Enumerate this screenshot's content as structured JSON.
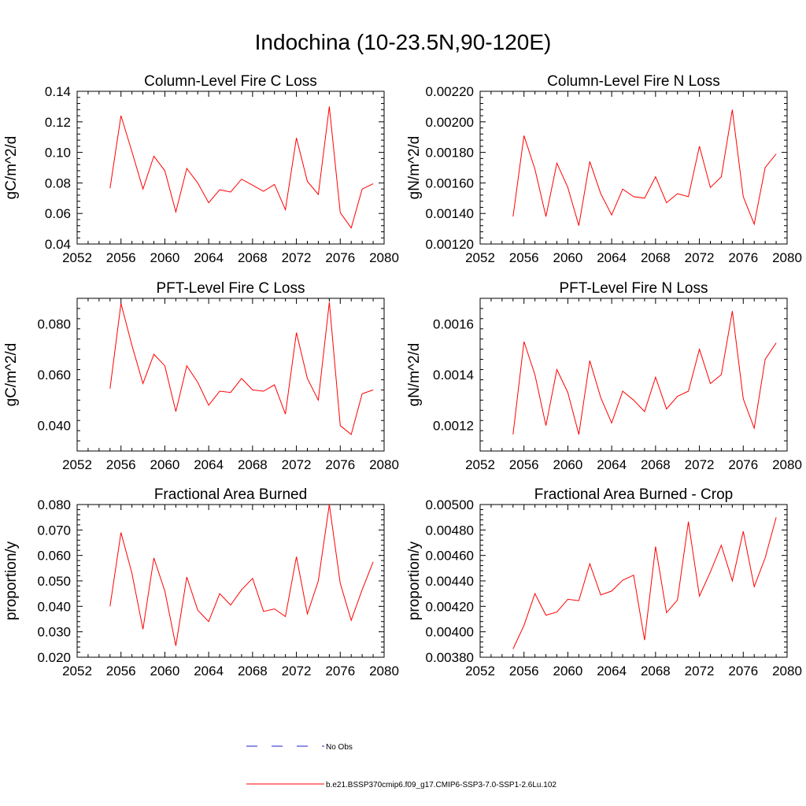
{
  "title": "Indochina (10-23.5N,90-120E)",
  "legend": {
    "obs_label": "No Obs",
    "model_label": "b.e21.BSSP370cmip6.f09_g17.CMIP6-SSP3-7.0-SSP1-2.6Lu.102",
    "obs_color": "#1f1fd0",
    "model_color": "#ff0000"
  },
  "chart_data": [
    {
      "type": "line",
      "title": "Column-Level Fire C Loss",
      "ylabel": "gC/m^2/d",
      "xlim": [
        2052,
        2080
      ],
      "ylim": [
        0.04,
        0.14
      ],
      "xticks": [
        "2052",
        "2056",
        "2060",
        "2064",
        "2068",
        "2072",
        "2076",
        "2080"
      ],
      "yticks": [
        "0.04",
        "0.06",
        "0.08",
        "0.10",
        "0.12",
        "0.14"
      ],
      "x": [
        2055,
        2056,
        2057,
        2058,
        2059,
        2060,
        2061,
        2062,
        2063,
        2064,
        2065,
        2066,
        2067,
        2068,
        2069,
        2070,
        2071,
        2072,
        2073,
        2074,
        2075,
        2076,
        2077,
        2078,
        2079
      ],
      "series": [
        {
          "values": [
            0.0765,
            0.124,
            0.1005,
            0.076,
            0.0975,
            0.088,
            0.061,
            0.0895,
            0.08,
            0.067,
            0.0755,
            0.074,
            0.0825,
            0.0785,
            0.0745,
            0.079,
            0.0625,
            0.1095,
            0.081,
            0.0725,
            0.13,
            0.0605,
            0.0505,
            0.076,
            0.0795
          ]
        }
      ]
    },
    {
      "type": "line",
      "title": "Column-Level Fire N Loss",
      "ylabel": "gN/m^2/d",
      "xlim": [
        2052,
        2080
      ],
      "ylim": [
        0.0012,
        0.0022
      ],
      "xticks": [
        "2052",
        "2056",
        "2060",
        "2064",
        "2068",
        "2072",
        "2076",
        "2080"
      ],
      "yticks": [
        "0.00120",
        "0.00140",
        "0.00160",
        "0.00180",
        "0.00200",
        "0.00220"
      ],
      "x": [
        2055,
        2056,
        2057,
        2058,
        2059,
        2060,
        2061,
        2062,
        2063,
        2064,
        2065,
        2066,
        2067,
        2068,
        2069,
        2070,
        2071,
        2072,
        2073,
        2074,
        2075,
        2076,
        2077,
        2078,
        2079
      ],
      "series": [
        {
          "values": [
            0.00138,
            0.00191,
            0.00169,
            0.00138,
            0.00173,
            0.00157,
            0.00132,
            0.00174,
            0.00153,
            0.00139,
            0.00156,
            0.00151,
            0.0015,
            0.00164,
            0.00147,
            0.00153,
            0.00151,
            0.00184,
            0.00157,
            0.00164,
            0.00208,
            0.00151,
            0.00133,
            0.0017,
            0.00179
          ]
        }
      ]
    },
    {
      "type": "line",
      "title": "PFT-Level Fire C Loss",
      "ylabel": "gC/m^2/d",
      "xlim": [
        2052,
        2080
      ],
      "ylim": [
        0.03,
        0.09
      ],
      "xticks": [
        "2052",
        "2056",
        "2060",
        "2064",
        "2068",
        "2072",
        "2076",
        "2080"
      ],
      "yticks": [
        "0.040",
        "0.060",
        "0.080"
      ],
      "x": [
        2055,
        2056,
        2057,
        2058,
        2059,
        2060,
        2061,
        2062,
        2063,
        2064,
        2065,
        2066,
        2067,
        2068,
        2069,
        2070,
        2071,
        2072,
        2073,
        2074,
        2075,
        2076,
        2077,
        2078,
        2079
      ],
      "series": [
        {
          "values": [
            0.0545,
            0.088,
            0.0715,
            0.0565,
            0.068,
            0.0635,
            0.0455,
            0.0635,
            0.057,
            0.048,
            0.0535,
            0.053,
            0.0585,
            0.054,
            0.0535,
            0.056,
            0.0445,
            0.0765,
            0.0585,
            0.05,
            0.0885,
            0.04,
            0.0365,
            0.0525,
            0.054
          ]
        }
      ]
    },
    {
      "type": "line",
      "title": "PFT-Level Fire N Loss",
      "ylabel": "gN/m^2/d",
      "xlim": [
        2052,
        2080
      ],
      "ylim": [
        0.0011,
        0.0017
      ],
      "xticks": [
        "2052",
        "2056",
        "2060",
        "2064",
        "2068",
        "2072",
        "2076",
        "2080"
      ],
      "yticks": [
        "0.0012",
        "0.0014",
        "0.0016"
      ],
      "x": [
        2055,
        2056,
        2057,
        2058,
        2059,
        2060,
        2061,
        2062,
        2063,
        2064,
        2065,
        2066,
        2067,
        2068,
        2069,
        2070,
        2071,
        2072,
        2073,
        2074,
        2075,
        2076,
        2077,
        2078,
        2079
      ],
      "series": [
        {
          "values": [
            0.001165,
            0.00153,
            0.0014,
            0.0012,
            0.00142,
            0.00133,
            0.001165,
            0.001455,
            0.00131,
            0.00121,
            0.001335,
            0.0013,
            0.001255,
            0.00139,
            0.001265,
            0.001315,
            0.001335,
            0.0015,
            0.001365,
            0.0014,
            0.00165,
            0.001305,
            0.00119,
            0.00146,
            0.001525
          ]
        }
      ]
    },
    {
      "type": "line",
      "title": "Fractional Area Burned",
      "ylabel": "proportion/y",
      "xlim": [
        2052,
        2080
      ],
      "ylim": [
        0.02,
        0.08
      ],
      "xticks": [
        "2052",
        "2056",
        "2060",
        "2064",
        "2068",
        "2072",
        "2076",
        "2080"
      ],
      "yticks": [
        "0.020",
        "0.030",
        "0.040",
        "0.050",
        "0.060",
        "0.070",
        "0.080"
      ],
      "x": [
        2055,
        2056,
        2057,
        2058,
        2059,
        2060,
        2061,
        2062,
        2063,
        2064,
        2065,
        2066,
        2067,
        2068,
        2069,
        2070,
        2071,
        2072,
        2073,
        2074,
        2075,
        2076,
        2077,
        2078,
        2079
      ],
      "series": [
        {
          "values": [
            0.04,
            0.069,
            0.053,
            0.031,
            0.059,
            0.046,
            0.0245,
            0.0515,
            0.0385,
            0.034,
            0.045,
            0.0405,
            0.0465,
            0.051,
            0.038,
            0.039,
            0.036,
            0.0595,
            0.037,
            0.05,
            0.08,
            0.049,
            0.0345,
            0.0465,
            0.0575
          ]
        }
      ]
    },
    {
      "type": "line",
      "title": "Fractional Area Burned - Crop",
      "ylabel": "proportion/y",
      "xlim": [
        2052,
        2080
      ],
      "ylim": [
        0.0038,
        0.005
      ],
      "xticks": [
        "2052",
        "2056",
        "2060",
        "2064",
        "2068",
        "2072",
        "2076",
        "2080"
      ],
      "yticks": [
        "0.00380",
        "0.00400",
        "0.00420",
        "0.00440",
        "0.00460",
        "0.00480",
        "0.00500"
      ],
      "x": [
        2055,
        2056,
        2057,
        2058,
        2059,
        2060,
        2061,
        2062,
        2063,
        2064,
        2065,
        2066,
        2067,
        2068,
        2069,
        2070,
        2071,
        2072,
        2073,
        2074,
        2075,
        2076,
        2077,
        2078,
        2079
      ],
      "series": [
        {
          "values": [
            0.003865,
            0.00405,
            0.0043,
            0.00413,
            0.004155,
            0.004255,
            0.004245,
            0.004535,
            0.00429,
            0.00432,
            0.004405,
            0.004445,
            0.003935,
            0.00467,
            0.00415,
            0.00425,
            0.004865,
            0.00428,
            0.00447,
            0.00468,
            0.0044,
            0.00479,
            0.004355,
            0.00458,
            0.0049
          ]
        }
      ]
    }
  ]
}
